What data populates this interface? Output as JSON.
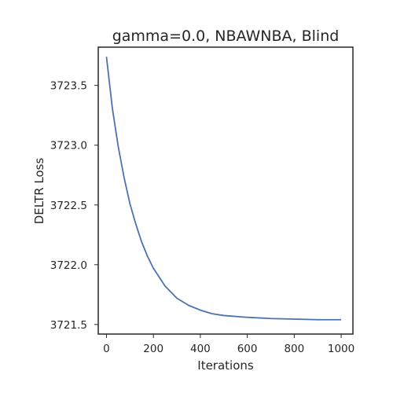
{
  "chart_data": {
    "type": "line",
    "title": "gamma=0.0, NBAWNBA, Blind",
    "xlabel": "Iterations",
    "ylabel": "DELTR Loss",
    "xlim": [
      -35,
      1050
    ],
    "ylim": [
      3721.42,
      3723.82
    ],
    "xticks": [
      0,
      200,
      400,
      600,
      800,
      1000
    ],
    "yticks": [
      3721.5,
      3722.0,
      3722.5,
      3723.0,
      3723.5
    ],
    "xtick_labels": [
      "0",
      "200",
      "400",
      "600",
      "800",
      "1000"
    ],
    "ytick_labels": [
      "3721.5",
      "3722.0",
      "3722.5",
      "3723.0",
      "3723.5"
    ],
    "grid": false,
    "legend": "none",
    "series": [
      {
        "color": "#4c72b0",
        "x": [
          0,
          25,
          50,
          75,
          100,
          125,
          150,
          175,
          200,
          250,
          300,
          350,
          400,
          450,
          500,
          600,
          700,
          800,
          900,
          1000
        ],
        "y": [
          3723.74,
          3723.31,
          3722.99,
          3722.73,
          3722.51,
          3722.34,
          3722.19,
          3722.07,
          3721.97,
          3721.82,
          3721.72,
          3721.66,
          3721.62,
          3721.59,
          3721.575,
          3721.56,
          3721.55,
          3721.545,
          3721.54,
          3721.54
        ]
      }
    ]
  }
}
